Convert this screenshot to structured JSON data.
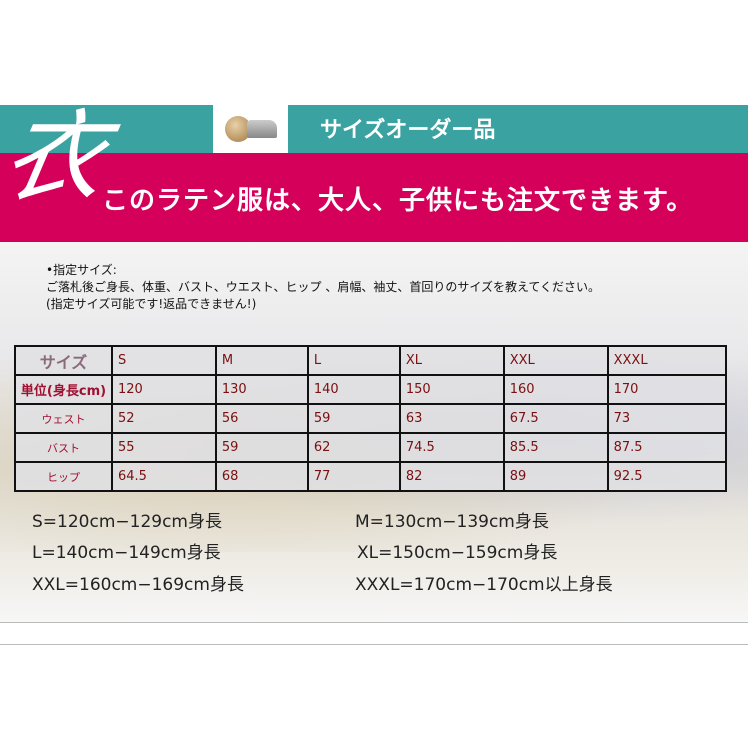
{
  "header": {
    "brush_char": "衣",
    "band_title": "サイズオーダー品",
    "banner": "このラテン服は、大人、子供にも注文できます。"
  },
  "note": {
    "heading": "•指定サイズ:",
    "body": "ご落札後ご身長、体重、バスト、ウエスト、ヒップ 、肩幅、袖丈、首回りのサイズを教えてください。",
    "warning": "(指定サイズ可能です!返品できません!)"
  },
  "table": {
    "headers": [
      "サイズ",
      "S",
      "M",
      "L",
      "XL",
      "XXL",
      "XXXL"
    ],
    "rows": [
      {
        "label": "単位(身長cm)",
        "values": [
          "120",
          "130",
          "140",
          "150",
          "160",
          "170"
        ]
      },
      {
        "label": "ウェスト",
        "values": [
          "52",
          "56",
          "59",
          "63",
          "67.5",
          "73"
        ]
      },
      {
        "label": "バスト",
        "values": [
          "55",
          "59",
          "62",
          "74.5",
          "85.5",
          "87.5"
        ]
      },
      {
        "label": "ヒップ",
        "values": [
          "64.5",
          "68",
          "77",
          "82",
          "89",
          "92.5"
        ]
      }
    ]
  },
  "size_notes": [
    "S=120cm−129cm身長",
    "M=130cm−139cm身長",
    "L=140cm−149cm身長",
    "XL=150cm−159cm身長",
    "XXL=160cm−169cm身長",
    "XXXL=170cm−170cm以上身長"
  ]
}
